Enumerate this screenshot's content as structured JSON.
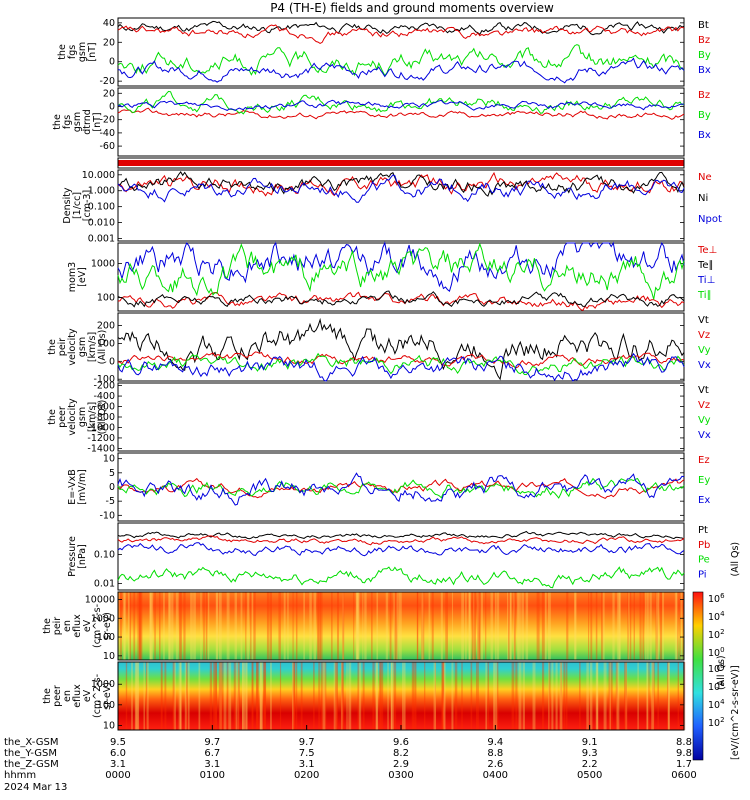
{
  "title": "P4 (TH-E) fields and ground moments overview",
  "chart_data": [
    {
      "type": "line",
      "ylabel": [
        "the",
        "fgs",
        "gsm",
        "[nT]"
      ],
      "ylim": [
        -25,
        45
      ],
      "yticks": [
        -20,
        0,
        20,
        40
      ],
      "series": [
        {
          "name": "Bt",
          "color": "#000000",
          "base": 35,
          "amp": 3
        },
        {
          "name": "Bz",
          "color": "#e00000",
          "base": 30,
          "amp": 3
        },
        {
          "name": "By",
          "color": "#00dd00",
          "base": 0,
          "amp": 6
        },
        {
          "name": "Bx",
          "color": "#0000dd",
          "base": -8,
          "amp": 4
        }
      ]
    },
    {
      "type": "line",
      "ylabel": [
        "the",
        "fgs",
        "gsm",
        "dtrnd",
        "[nT]"
      ],
      "ylim": [
        -75,
        28
      ],
      "yticks": [
        -60,
        -40,
        -20,
        0,
        20
      ],
      "series": [
        {
          "name": "Bz",
          "color": "#e00000",
          "base": -12,
          "amp": 3
        },
        {
          "name": "By",
          "color": "#00dd00",
          "base": 5,
          "amp": 6
        },
        {
          "name": "Bx",
          "color": "#0000dd",
          "base": 2,
          "amp": 3
        }
      ]
    },
    {
      "type": "bar",
      "ylabel": [],
      "note": "red status bar across full interval"
    },
    {
      "type": "line",
      "log": true,
      "ylabel": [
        "Density",
        "[1/cc]",
        "[cm-3]"
      ],
      "ylim": [
        0.0007,
        20
      ],
      "yticks": [
        0.001,
        0.01,
        0.1,
        1,
        10
      ],
      "ytick_labels": [
        "0.001",
        "0.010",
        "0.100",
        "1.000",
        "10.000"
      ],
      "series": [
        {
          "name": "Ne",
          "color": "#e00000",
          "base": 2.5,
          "amp": 0.3
        },
        {
          "name": "Ni",
          "color": "#000000",
          "base": 2.0,
          "amp": 0.3
        },
        {
          "name": "Npot",
          "color": "#0000dd",
          "base": 1.5,
          "amp": 0.3
        }
      ]
    },
    {
      "type": "line",
      "log": true,
      "ylabel": [
        "mom3",
        "[eV]"
      ],
      "ylim": [
        40,
        4000
      ],
      "yticks": [
        100,
        1000
      ],
      "ytick_labels": [
        "100",
        "1000"
      ],
      "series": [
        {
          "name": "Te⊥",
          "color": "#e00000",
          "base": 75,
          "amp": 0.1
        },
        {
          "name": "Te∥",
          "color": "#000000",
          "base": 90,
          "amp": 0.1
        },
        {
          "name": "Ti⊥",
          "color": "#0000dd",
          "base": 1200,
          "amp": 0.3
        },
        {
          "name": "Ti∥",
          "color": "#00dd00",
          "base": 500,
          "amp": 0.3
        }
      ]
    },
    {
      "type": "line",
      "ylabel": [
        "the",
        "peir",
        "velocity",
        "gsm",
        "[km/s]",
        "(All Qs)"
      ],
      "ylim": [
        -110,
        270
      ],
      "yticks": [
        -100,
        0,
        100,
        200
      ],
      "series": [
        {
          "name": "Vt",
          "color": "#000000",
          "base": 100,
          "amp": 50
        },
        {
          "name": "Vz",
          "color": "#e00000",
          "base": 10,
          "amp": 15
        },
        {
          "name": "Vy",
          "color": "#00dd00",
          "base": -10,
          "amp": 25
        },
        {
          "name": "Vx",
          "color": "#0000dd",
          "base": -30,
          "amp": 30
        }
      ]
    },
    {
      "type": "line",
      "ylabel": [
        "the",
        "peer",
        "velocity",
        "gsm",
        "[km/s]",
        "(All Qs)"
      ],
      "ylim": [
        -1450,
        -150
      ],
      "yticks": [
        -1400,
        -1200,
        -1000,
        -800,
        -600,
        -400,
        -200
      ],
      "series": [
        {
          "name": "Vt",
          "color": "#000000",
          "base": null,
          "amp": 0
        },
        {
          "name": "Vz",
          "color": "#e00000",
          "base": null,
          "amp": 0
        },
        {
          "name": "Vy",
          "color": "#00dd00",
          "base": null,
          "amp": 0
        },
        {
          "name": "Vx",
          "color": "#0000dd",
          "base": null,
          "amp": 0
        }
      ]
    },
    {
      "type": "line",
      "ylabel": [
        "E=-VxB",
        "[mV/m]"
      ],
      "ylim": [
        -12,
        12
      ],
      "yticks": [
        -10,
        -5,
        0,
        5,
        10
      ],
      "series": [
        {
          "name": "Ez",
          "color": "#e00000",
          "base": 0,
          "amp": 1
        },
        {
          "name": "Ey",
          "color": "#00dd00",
          "base": 0,
          "amp": 1.5
        },
        {
          "name": "Ex",
          "color": "#0000dd",
          "base": -0.5,
          "amp": 2
        }
      ]
    },
    {
      "type": "line",
      "log": true,
      "ylabel": [
        "Pressure",
        "[nPa]"
      ],
      "ylim": [
        0.006,
        1.2
      ],
      "yticks": [
        0.01,
        0.1
      ],
      "ytick_labels": [
        "0.01",
        "0.10"
      ],
      "series": [
        {
          "name": "Pt",
          "color": "#000000",
          "base": 0.45,
          "amp": 0.05
        },
        {
          "name": "Pb",
          "color": "#e00000",
          "base": 0.3,
          "amp": 0.06
        },
        {
          "name": "Pe",
          "color": "#00dd00",
          "base": 0.017,
          "amp": 0.15
        },
        {
          "name": "Pi",
          "color": "#0000dd",
          "base": 0.15,
          "amp": 0.1
        }
      ],
      "right_note": "(All Qs)"
    },
    {
      "type": "heatmap",
      "log": true,
      "ylabel": [
        "the",
        "peir",
        "en",
        "eflux",
        "eV",
        "(cm^2-s-",
        "sr-eV)"
      ],
      "ylim": [
        6,
        25000
      ],
      "yticks": [
        10,
        100,
        1000,
        10000
      ],
      "ytick_labels": [
        "10",
        "100",
        "1000",
        "10000"
      ]
    },
    {
      "type": "heatmap",
      "log": true,
      "ylabel": [
        "the",
        "peer",
        "en",
        "eflux",
        "eV",
        "(cm^2-s-",
        "sr-eV)"
      ],
      "ylim": [
        6,
        12000
      ],
      "yticks": [
        10,
        100,
        1000
      ],
      "ytick_labels": [
        "10",
        "100",
        "1000"
      ]
    }
  ],
  "colorbar": {
    "label": "[eV/(cm^2-s-sr-eV)]",
    "label2": "(All Qs)",
    "ticks_top": [
      "10^6",
      "10^4",
      "10^2",
      "10^0"
    ],
    "ticks_bottom": [
      "10^8",
      "10^6",
      "10^4",
      "10^2"
    ]
  },
  "xaxis": {
    "time_ticks": [
      "0000",
      "0100",
      "0200",
      "0300",
      "0400",
      "0500",
      "0600"
    ],
    "rows": [
      {
        "label": "the_X-GSM",
        "values": [
          "9.5",
          "9.7",
          "9.7",
          "9.6",
          "9.4",
          "9.1",
          "8.8"
        ]
      },
      {
        "label": "the_Y-GSM",
        "values": [
          "6.0",
          "6.7",
          "7.5",
          "8.2",
          "8.8",
          "9.3",
          "9.8"
        ]
      },
      {
        "label": "the_Z-GSM",
        "values": [
          "3.1",
          "3.1",
          "3.1",
          "2.9",
          "2.6",
          "2.2",
          "1.7"
        ]
      },
      {
        "label": "hhmm",
        "values": [
          "0000",
          "0100",
          "0200",
          "0300",
          "0400",
          "0500",
          "0600"
        ]
      }
    ],
    "date": "2024 Mar 13"
  }
}
